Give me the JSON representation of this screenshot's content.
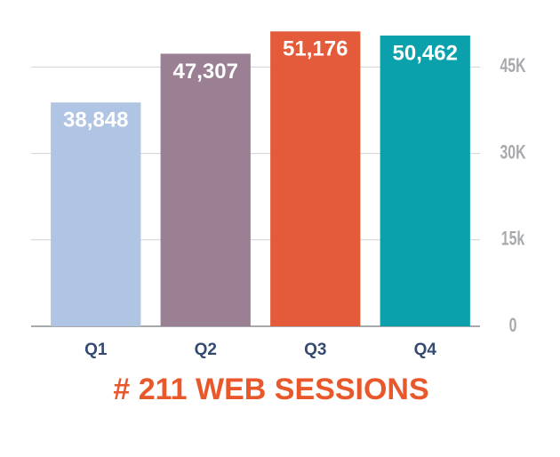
{
  "chart_data": {
    "type": "bar",
    "title": "# 211 WEB SESSIONS",
    "categories": [
      "Q1",
      "Q2",
      "Q3",
      "Q4"
    ],
    "values": [
      38848,
      47307,
      51176,
      50462
    ],
    "value_labels": [
      "38,848",
      "47,307",
      "51,176",
      "50,462"
    ],
    "colors": [
      "#b0c4e4",
      "#9b7f93",
      "#e45b3c",
      "#0aa1ad"
    ],
    "ylim": [
      0,
      52000
    ],
    "yticks": [
      0,
      {
        "value": 15000,
        "label": "15k"
      },
      {
        "value": 30000,
        "label": "30K"
      },
      {
        "value": 45000,
        "label": "45K"
      }
    ],
    "grid": true
  }
}
